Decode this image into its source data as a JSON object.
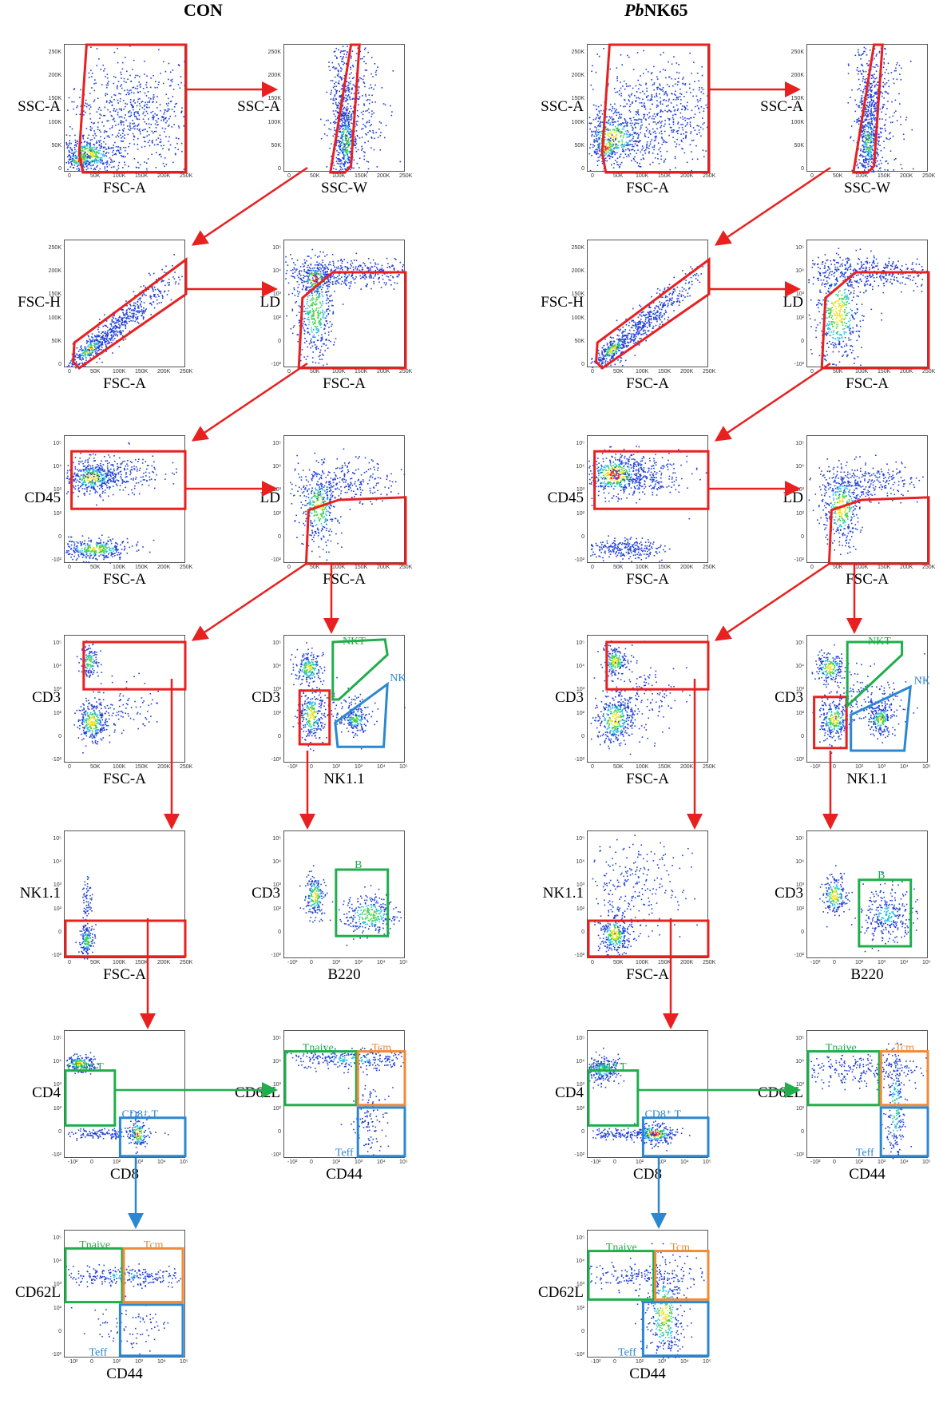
{
  "columns": [
    {
      "key": "con",
      "title": "CON",
      "title_italic_prefix": "",
      "title_rest": "CON"
    },
    {
      "key": "pb",
      "title": "PbNK65",
      "title_italic_prefix": "Pb",
      "title_rest": "NK65"
    }
  ],
  "tick_labels": {
    "linear": [
      "0",
      "50K",
      "100K",
      "150K",
      "200K",
      "250K"
    ],
    "log": [
      "-10²",
      "0",
      "10²",
      "10³",
      "10⁴",
      "10⁵"
    ]
  },
  "plots": {
    "con": [
      {
        "id": "p1",
        "y": "SSC-A",
        "x": "FSC-A"
      },
      {
        "id": "p2",
        "y": "SSC-A",
        "x": "SSC-W"
      },
      {
        "id": "p3",
        "y": "FSC-H",
        "x": "FSC-A"
      },
      {
        "id": "p4",
        "y": "LD",
        "x": "FSC-A"
      },
      {
        "id": "p5",
        "y": "CD45",
        "x": "FSC-A"
      },
      {
        "id": "p6",
        "y": "LD",
        "x": "FSC-A"
      },
      {
        "id": "p7",
        "y": "CD3",
        "x": "FSC-A"
      },
      {
        "id": "p8",
        "y": "CD3",
        "x": "NK1.1"
      },
      {
        "id": "p9",
        "y": "NK1.1",
        "x": "FSC-A"
      },
      {
        "id": "p10",
        "y": "CD3",
        "x": "B220"
      },
      {
        "id": "p11",
        "y": "CD4",
        "x": "CD8"
      },
      {
        "id": "p12",
        "y": "CD62L",
        "x": "CD44"
      },
      {
        "id": "p13",
        "y": "CD62L",
        "x": "CD44"
      }
    ],
    "pb": [
      {
        "id": "p1",
        "y": "SSC-A",
        "x": "FSC-A"
      },
      {
        "id": "p2",
        "y": "SSC-A",
        "x": "SSC-W"
      },
      {
        "id": "p3",
        "y": "FSC-H",
        "x": "FSC-A"
      },
      {
        "id": "p4",
        "y": "LD",
        "x": "FSC-A"
      },
      {
        "id": "p5",
        "y": "CD45",
        "x": "FSC-A"
      },
      {
        "id": "p6",
        "y": "LD",
        "x": "FSC-A"
      },
      {
        "id": "p7",
        "y": "CD3",
        "x": "FSC-A"
      },
      {
        "id": "p8",
        "y": "CD3",
        "x": "NK1.1"
      },
      {
        "id": "p9",
        "y": "NK1.1",
        "x": "FSC-A"
      },
      {
        "id": "p10",
        "y": "CD3",
        "x": "B220"
      },
      {
        "id": "p11",
        "y": "CD4",
        "x": "CD8"
      },
      {
        "id": "p12",
        "y": "CD62L",
        "x": "CD44"
      },
      {
        "id": "p13",
        "y": "CD62L",
        "x": "CD44"
      }
    ]
  },
  "gate_labels": {
    "nkt": "NKT",
    "nk": "NK",
    "b": "B",
    "cd4t": "CD4⁺ T",
    "cd8t": "CD8⁺ T",
    "tnaive": "Tnaive",
    "tcm": "Tcm",
    "teff": "Teff"
  },
  "colors": {
    "gate_red": "#e8201f",
    "gate_green": "#1fae4b",
    "gate_blue": "#2b87d1",
    "gate_orange": "#ee8a3a",
    "dot_blue": "#1f3fd6",
    "dot_cyan": "#20c0e8",
    "dot_green": "#3fd24a",
    "dot_yellow": "#f2e11c",
    "dot_red": "#e8261a"
  }
}
